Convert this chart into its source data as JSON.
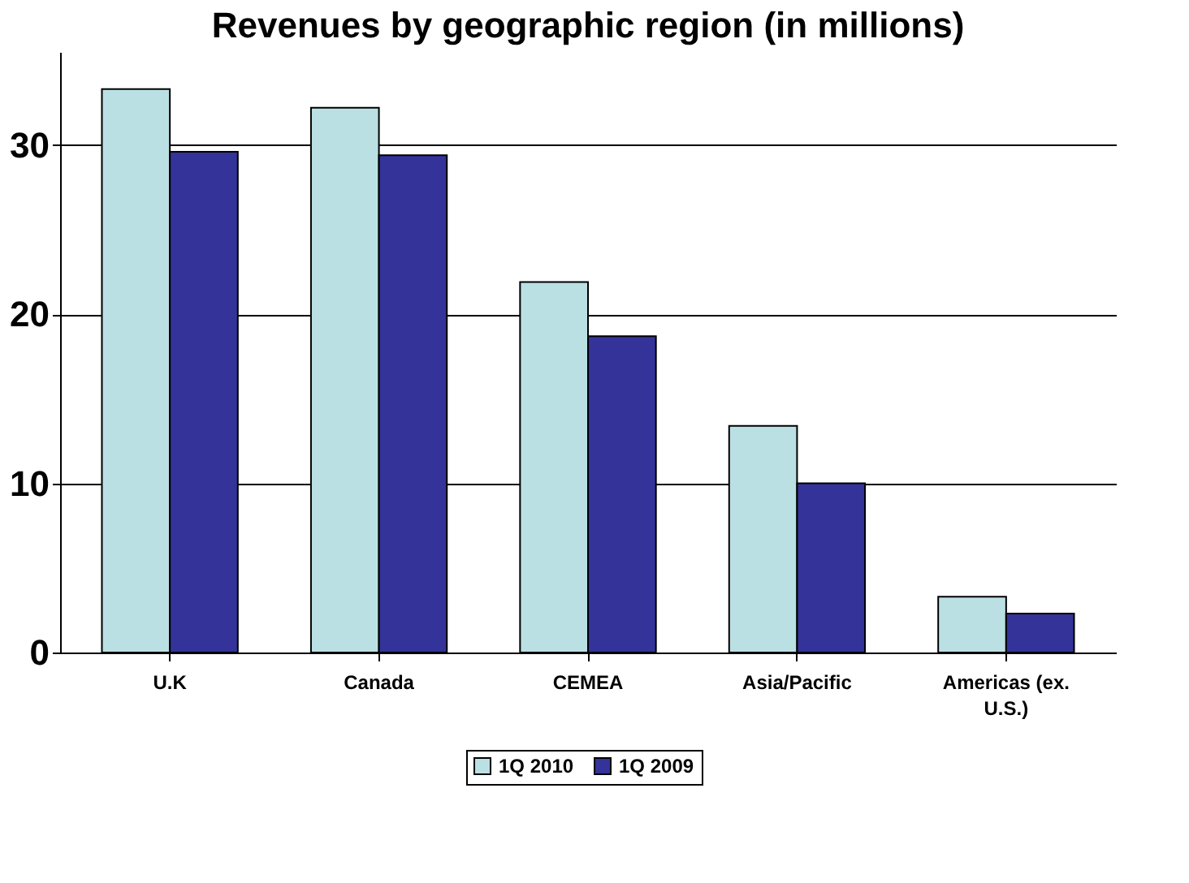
{
  "chart_data": {
    "type": "bar",
    "title": "Revenues by geographic region (in millions)",
    "categories": [
      "U.K",
      "Canada",
      "CEMEA",
      "Asia/Pacific",
      "Americas (ex. U.S.)"
    ],
    "series": [
      {
        "name": "1Q 2010",
        "color": "#bbe0e3",
        "values": [
          33.3,
          32.2,
          21.9,
          13.4,
          3.3
        ]
      },
      {
        "name": "1Q 2009",
        "color": "#333399",
        "values": [
          29.6,
          29.4,
          18.7,
          10.0,
          2.3
        ]
      }
    ],
    "ylim": [
      0,
      35.5
    ],
    "yticks": [
      0,
      10,
      20,
      30
    ],
    "grid": "y",
    "legend": "bottom"
  }
}
